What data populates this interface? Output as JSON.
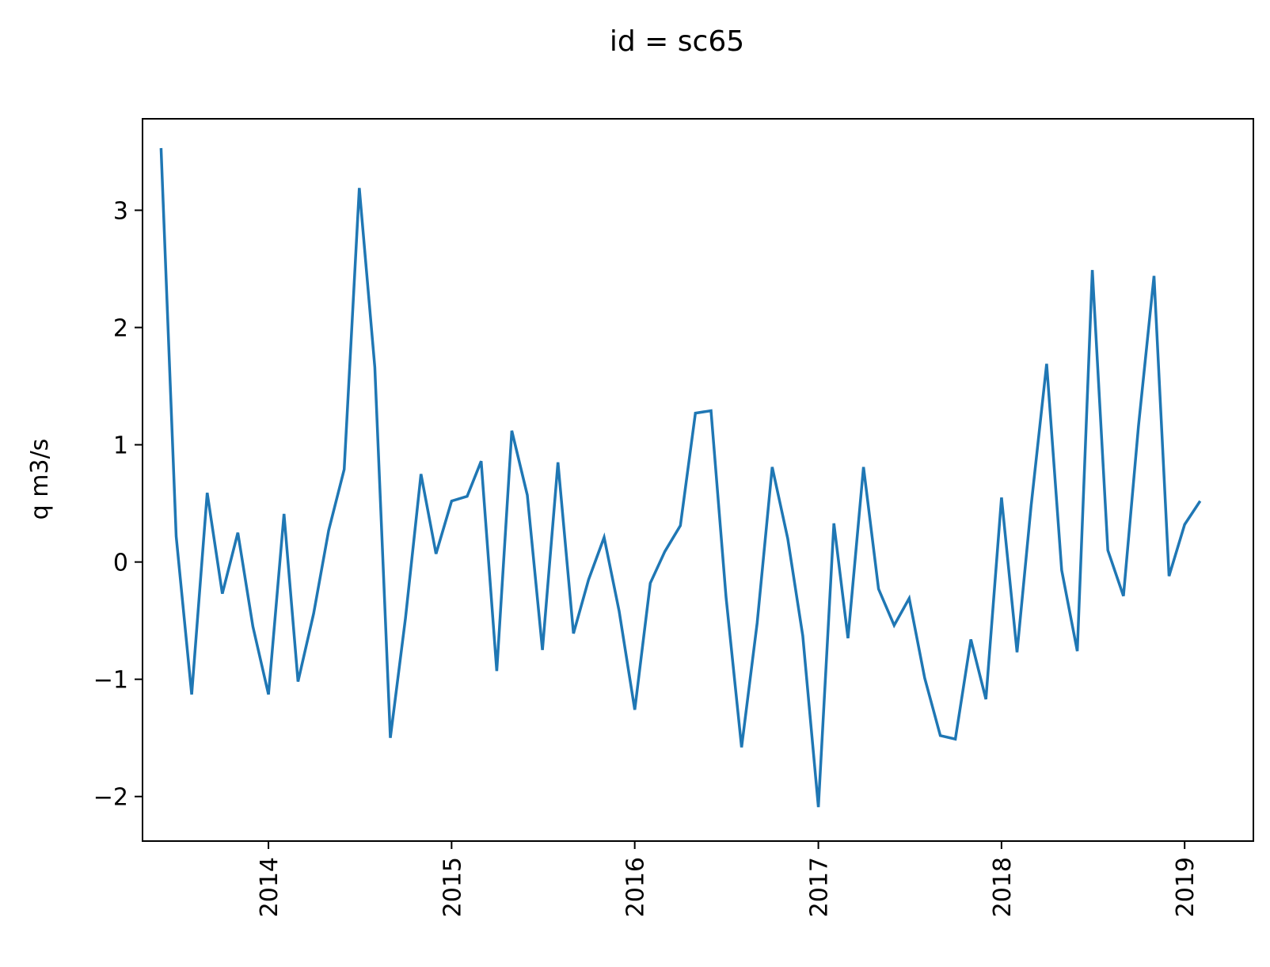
{
  "chart_data": {
    "type": "line",
    "title": "id = sc65",
    "xlabel": "",
    "ylabel": "q m3/s",
    "x_tick_labels": [
      "2014",
      "2015",
      "2016",
      "2017",
      "2018",
      "2019"
    ],
    "y_tick_labels": [
      "−2",
      "−1",
      "0",
      "1",
      "2",
      "3"
    ],
    "y_ticks": [
      -2,
      -1,
      0,
      1,
      2,
      3
    ],
    "ylim": [
      -2.38,
      3.78
    ],
    "xlim": [
      "2013-04-25",
      "2019-05-18"
    ],
    "grid": false,
    "line_color": "#1f77b4",
    "series": [
      {
        "x": [
          "2013-06-01",
          "2013-07-01",
          "2013-08-01",
          "2013-09-01",
          "2013-10-01",
          "2013-11-01",
          "2013-12-01",
          "2014-01-01",
          "2014-02-01",
          "2014-03-01",
          "2014-04-01",
          "2014-05-01",
          "2014-06-01",
          "2014-07-01",
          "2014-08-01",
          "2014-09-01",
          "2014-10-01",
          "2014-11-01",
          "2014-12-01",
          "2015-01-01",
          "2015-02-01",
          "2015-03-01",
          "2015-04-01",
          "2015-05-01",
          "2015-06-01",
          "2015-07-01",
          "2015-08-01",
          "2015-09-01",
          "2015-10-01",
          "2015-11-01",
          "2015-12-01",
          "2016-01-01",
          "2016-02-01",
          "2016-03-01",
          "2016-04-01",
          "2016-05-01",
          "2016-06-01",
          "2016-07-01",
          "2016-08-01",
          "2016-09-01",
          "2016-10-01",
          "2016-11-01",
          "2016-12-01",
          "2017-01-01",
          "2017-02-01",
          "2017-03-01",
          "2017-04-01",
          "2017-05-01",
          "2017-06-01",
          "2017-07-01",
          "2017-08-01",
          "2017-09-01",
          "2017-10-01",
          "2017-11-01",
          "2017-12-01",
          "2018-01-01",
          "2018-02-01",
          "2018-03-01",
          "2018-04-01",
          "2018-05-01",
          "2018-06-01",
          "2018-07-01",
          "2018-08-01",
          "2018-09-01",
          "2018-10-01",
          "2018-11-01",
          "2018-12-01",
          "2019-01-01",
          "2019-02-01"
        ],
        "values": [
          3.53,
          0.22,
          -1.13,
          0.59,
          -0.27,
          0.25,
          -0.55,
          -1.13,
          0.41,
          -1.02,
          -0.44,
          0.27,
          0.79,
          3.19,
          1.66,
          -1.5,
          -0.48,
          0.75,
          0.07,
          0.52,
          0.56,
          0.86,
          -0.93,
          1.12,
          0.57,
          -0.75,
          0.85,
          -0.61,
          -0.15,
          0.21,
          -0.42,
          -1.26,
          -0.18,
          0.09,
          0.31,
          1.27,
          1.29,
          -0.3,
          -1.58,
          -0.52,
          0.81,
          0.2,
          -0.63,
          -2.09,
          0.33,
          -0.65,
          0.81,
          -0.23,
          -0.54,
          -0.31,
          -0.99,
          -1.48,
          -1.51,
          -0.66,
          -1.17,
          0.55,
          -0.77,
          0.48,
          1.69,
          -0.07,
          -0.76,
          2.49,
          0.1,
          -0.29,
          1.16,
          2.44,
          -0.12,
          0.32,
          0.52
        ]
      }
    ]
  }
}
